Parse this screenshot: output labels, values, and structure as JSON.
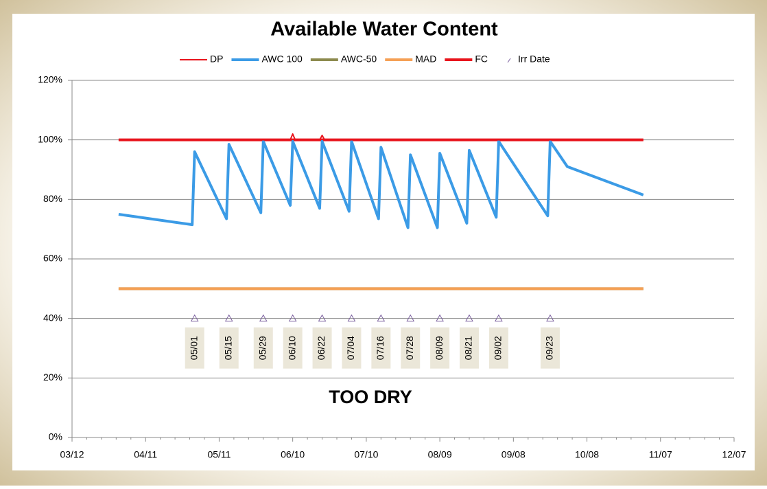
{
  "chart_data": {
    "type": "line",
    "title": "Available Water Content",
    "annotation": "TOO DRY",
    "xlim": [
      "03/12",
      "12/07"
    ],
    "xticks": [
      "03/12",
      "04/11",
      "05/11",
      "06/10",
      "07/10",
      "08/09",
      "09/08",
      "10/08",
      "11/07",
      "12/07"
    ],
    "ylim": [
      0,
      120
    ],
    "yticks": [
      {
        "value": 0,
        "label": "0%"
      },
      {
        "value": 20,
        "label": "20%"
      },
      {
        "value": 40,
        "label": "40%"
      },
      {
        "value": 60,
        "label": "60%"
      },
      {
        "value": 80,
        "label": "80%"
      },
      {
        "value": 100,
        "label": "100%"
      },
      {
        "value": 120,
        "label": "120%"
      }
    ],
    "grid": true,
    "series": [
      {
        "name": "DP",
        "color": "#e8141c",
        "width": 2,
        "x": [
          "03/31",
          "06/09",
          "06/10",
          "06/11",
          "06/21",
          "06/22",
          "06/23",
          "10/31"
        ],
        "values": [
          100,
          100,
          102,
          100,
          100,
          101.5,
          100,
          100
        ]
      },
      {
        "name": "AWC  100",
        "color": "#3b9be6",
        "width": 4,
        "x": [
          "03/31",
          "04/30",
          "05/01",
          "05/14",
          "05/15",
          "05/28",
          "05/29",
          "06/09",
          "06/10",
          "06/21",
          "06/22",
          "07/03",
          "07/04",
          "07/15",
          "07/16",
          "07/27",
          "07/28",
          "08/08",
          "08/09",
          "08/20",
          "08/21",
          "09/01",
          "09/02",
          "09/22",
          "09/23",
          "09/30",
          "10/31"
        ],
        "values": [
          75,
          71.5,
          96,
          73.5,
          98.5,
          75.5,
          99.5,
          78,
          99.5,
          77,
          99.5,
          76,
          99.5,
          73.5,
          97.5,
          70.5,
          95,
          70.5,
          95.5,
          72,
          96.5,
          74,
          99.5,
          74.5,
          99.5,
          91,
          81.5
        ]
      },
      {
        "name": "AWC-50",
        "color": "#8c8a4e",
        "width": 4,
        "x": [
          "03/31",
          "10/31"
        ],
        "values": [
          50,
          50
        ]
      },
      {
        "name": "MAD",
        "color": "#f5a055",
        "width": 4,
        "x": [
          "03/31",
          "10/31"
        ],
        "values": [
          50,
          50
        ]
      },
      {
        "name": "FC",
        "color": "#e8141c",
        "width": 4,
        "x": [
          "03/31",
          "10/31"
        ],
        "values": [
          100,
          100
        ]
      },
      {
        "name": "Irr Date",
        "color": "#7a5f9e",
        "marker": "triangle",
        "x": [
          "05/01",
          "05/15",
          "05/29",
          "06/10",
          "06/22",
          "07/04",
          "07/16",
          "07/28",
          "08/09",
          "08/21",
          "09/02",
          "09/23"
        ],
        "values": [
          40,
          40,
          40,
          40,
          40,
          40,
          40,
          40,
          40,
          40,
          40,
          40
        ]
      }
    ]
  }
}
